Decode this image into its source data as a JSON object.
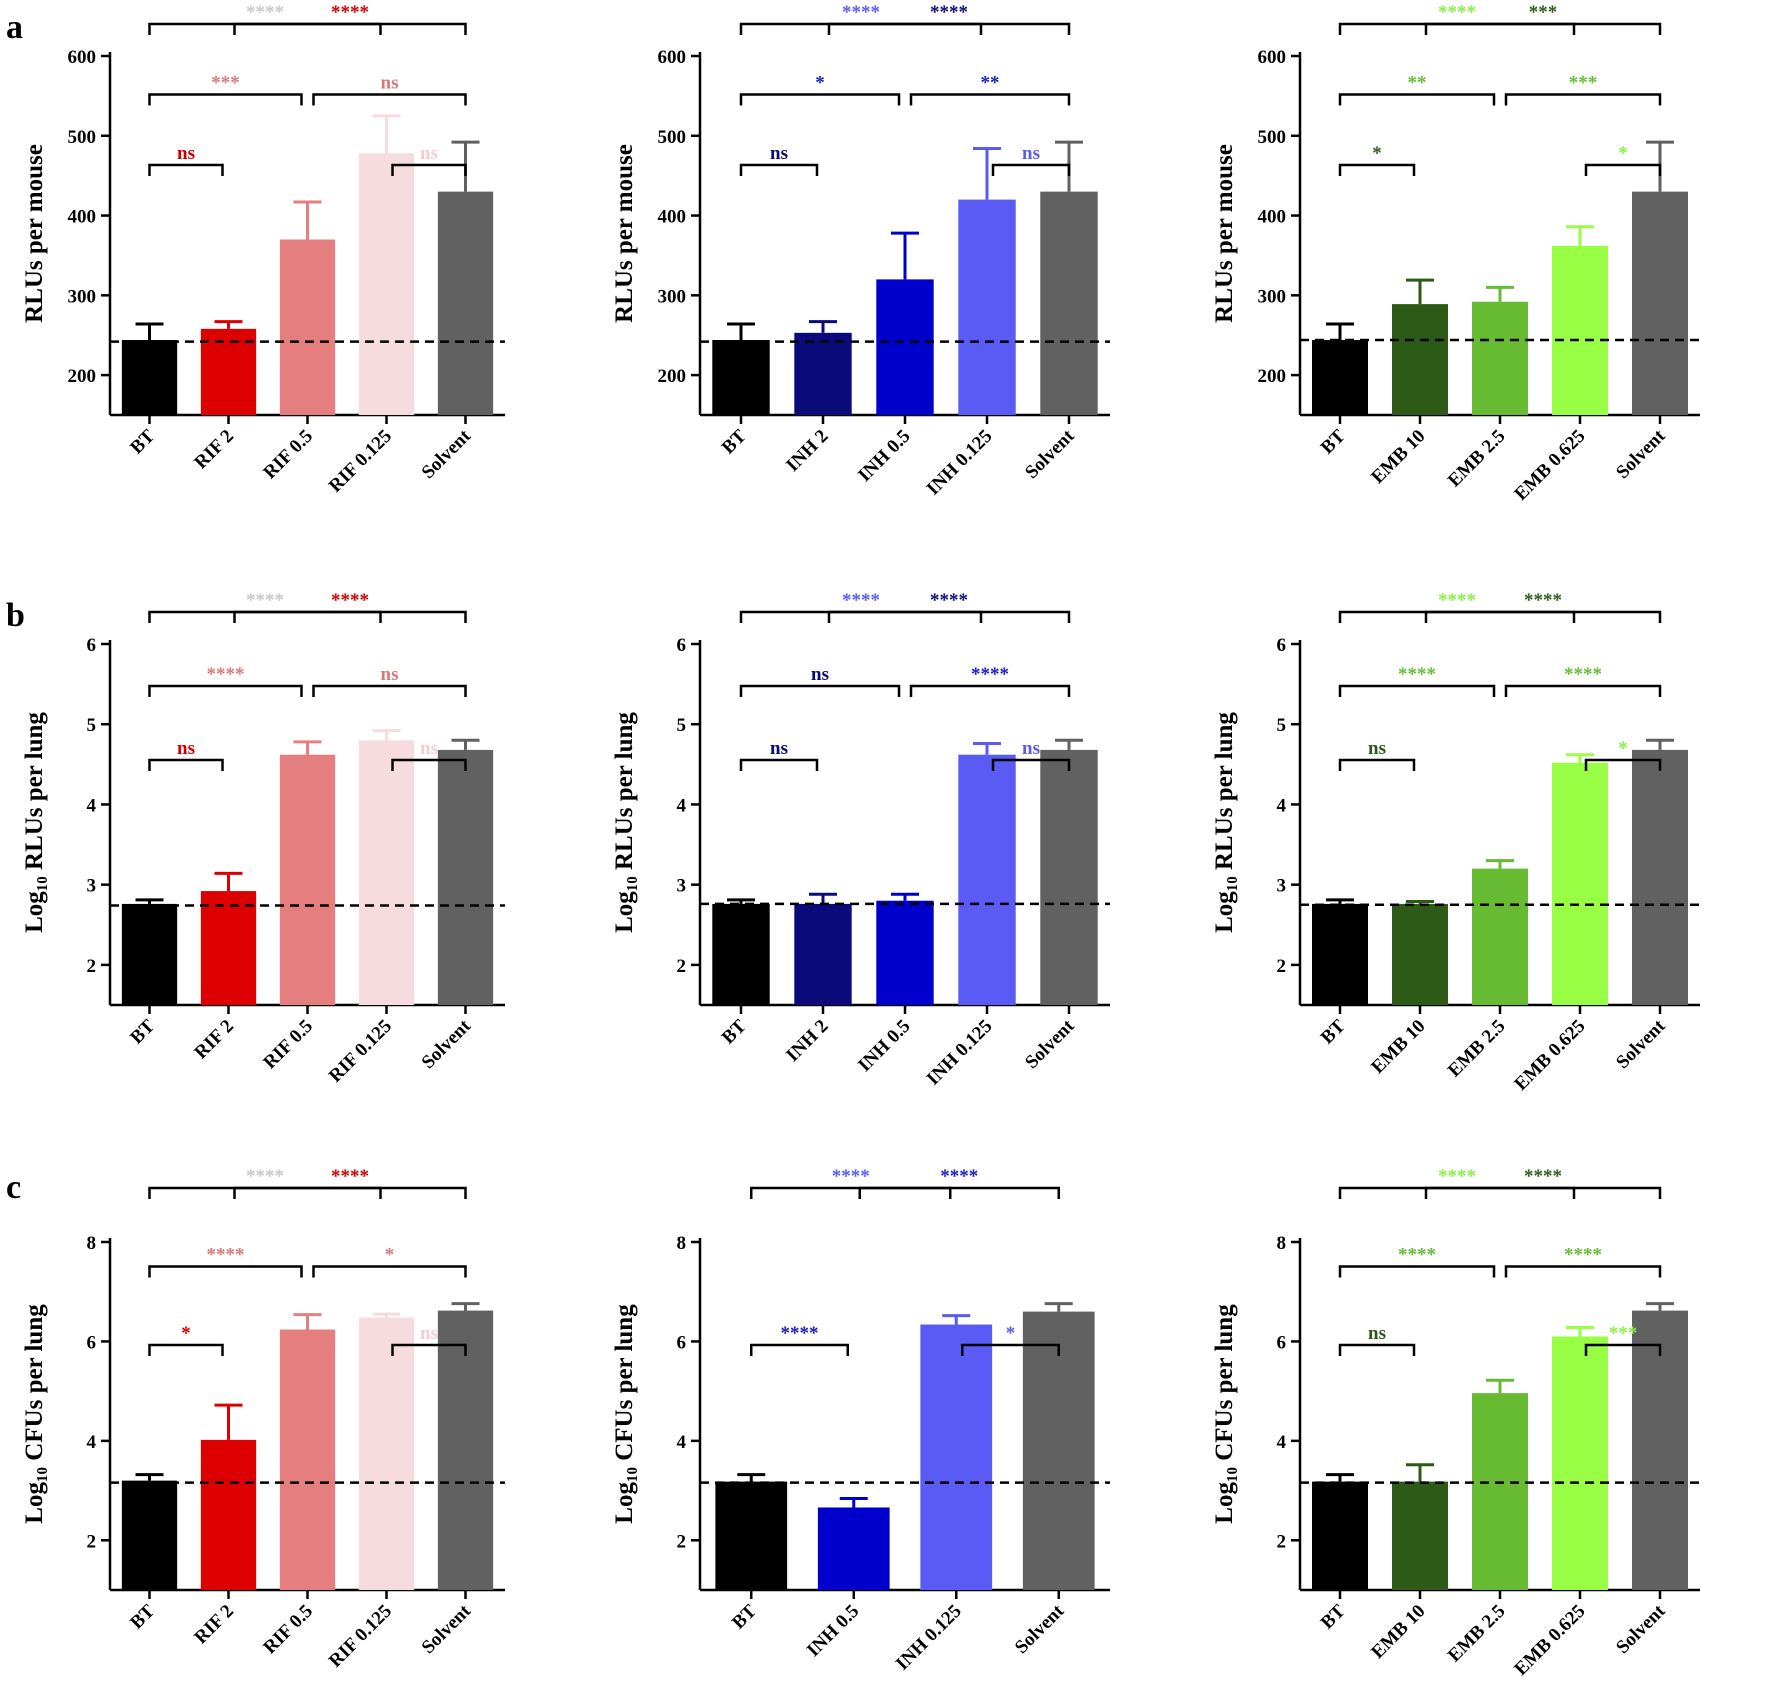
{
  "figure": {
    "panel_labels": [
      "a",
      "b",
      "c"
    ],
    "colors": {
      "BT": "#000000",
      "RIF 2": "#dd0000",
      "RIF 0.5": "#e57f7f",
      "RIF 0.125": "#f6dcdf",
      "Solvent": "#616161",
      "INH 2": "#0a0a7a",
      "INH 0.5": "#0000cc",
      "INH 0.125": "#5a5af5",
      "EMB 10": "#2e5a17",
      "EMB 2.5": "#66bb33",
      "EMB 0.625": "#99ff44"
    },
    "sig_colors": {
      "RIF 2": "#cc0000",
      "RIF 0.5": "#d87878",
      "RIF 0.125": "#f4cdd2",
      "RIF 0.125 vs BT": "#c8c8c8",
      "INH 2": "#0a0a7a",
      "INH 0.5": "#1a1ac0",
      "INH 0.125": "#5a5af5",
      "EMB 10": "#2e5a17",
      "EMB 2.5": "#66bb33",
      "EMB 0.625": "#88ee44"
    }
  },
  "chart_data": [
    {
      "type": "bar",
      "panel": "a",
      "col": 0,
      "ylabel": "RLUs per mouse",
      "ylim": [
        150,
        600
      ],
      "yticks": [
        200,
        300,
        400,
        500,
        600
      ],
      "categories": [
        "BT",
        "RIF 2",
        "RIF 0.5",
        "RIF 0.125",
        "Solvent"
      ],
      "values": [
        244,
        258,
        370,
        478,
        430
      ],
      "errors": [
        20,
        9,
        47,
        47,
        62
      ],
      "baseline": 242,
      "comparisons": [
        {
          "from": "BT",
          "to": "RIF 2",
          "label": "ns",
          "color": "RIF 2"
        },
        {
          "from": "BT",
          "to": "RIF 0.5",
          "label": "***",
          "color": "RIF 0.5"
        },
        {
          "from": "BT",
          "to": "RIF 0.125",
          "label": "****",
          "color": "RIF 0.125 vs BT"
        },
        {
          "from": "RIF 0.125",
          "to": "Solvent",
          "label": "ns",
          "color": "RIF 0.125"
        },
        {
          "from": "RIF 0.5",
          "to": "Solvent",
          "label": "ns",
          "color": "RIF 0.5"
        },
        {
          "from": "RIF 2",
          "to": "Solvent",
          "label": "****",
          "color": "RIF 2"
        }
      ]
    },
    {
      "type": "bar",
      "panel": "a",
      "col": 1,
      "ylabel": "RLUs per mouse",
      "ylim": [
        150,
        600
      ],
      "yticks": [
        200,
        300,
        400,
        500,
        600
      ],
      "categories": [
        "BT",
        "INH 2",
        "INH 0.5",
        "INH 0.125",
        "Solvent"
      ],
      "values": [
        244,
        253,
        320,
        420,
        430
      ],
      "errors": [
        20,
        14,
        58,
        64,
        62
      ],
      "baseline": 242,
      "comparisons": [
        {
          "from": "BT",
          "to": "INH 2",
          "label": "ns",
          "color": "INH 2"
        },
        {
          "from": "BT",
          "to": "INH 0.5",
          "label": "*",
          "color": "INH 0.5"
        },
        {
          "from": "BT",
          "to": "INH 0.125",
          "label": "****",
          "color": "INH 0.125"
        },
        {
          "from": "INH 0.125",
          "to": "Solvent",
          "label": "ns",
          "color": "INH 0.125"
        },
        {
          "from": "INH 0.5",
          "to": "Solvent",
          "label": "**",
          "color": "INH 0.5"
        },
        {
          "from": "INH 2",
          "to": "Solvent",
          "label": "****",
          "color": "INH 2"
        }
      ]
    },
    {
      "type": "bar",
      "panel": "a",
      "col": 2,
      "ylabel": "RLUs per mouse",
      "ylim": [
        150,
        600
      ],
      "yticks": [
        200,
        300,
        400,
        500,
        600
      ],
      "categories": [
        "BT",
        "EMB 10",
        "EMB 2.5",
        "EMB 0.625",
        "Solvent"
      ],
      "values": [
        244,
        289,
        292,
        362,
        430
      ],
      "errors": [
        20,
        30,
        18,
        24,
        62
      ],
      "baseline": 244,
      "comparisons": [
        {
          "from": "BT",
          "to": "EMB 10",
          "label": "*",
          "color": "EMB 10"
        },
        {
          "from": "BT",
          "to": "EMB 2.5",
          "label": "**",
          "color": "EMB 2.5"
        },
        {
          "from": "BT",
          "to": "EMB 0.625",
          "label": "****",
          "color": "EMB 0.625"
        },
        {
          "from": "EMB 0.625",
          "to": "Solvent",
          "label": "*",
          "color": "EMB 0.625"
        },
        {
          "from": "EMB 2.5",
          "to": "Solvent",
          "label": "***",
          "color": "EMB 2.5"
        },
        {
          "from": "EMB 10",
          "to": "Solvent",
          "label": "***",
          "color": "EMB 10"
        }
      ]
    },
    {
      "type": "bar",
      "panel": "b",
      "col": 0,
      "ylabel": "Log₁₀ RLUs per lung",
      "ylim": [
        1.5,
        6
      ],
      "yticks": [
        2,
        3,
        4,
        5,
        6
      ],
      "categories": [
        "BT",
        "RIF 2",
        "RIF 0.5",
        "RIF 0.125",
        "Solvent"
      ],
      "values": [
        2.76,
        2.92,
        4.62,
        4.8,
        4.68
      ],
      "errors": [
        0.05,
        0.22,
        0.16,
        0.12,
        0.12
      ],
      "baseline": 2.74,
      "comparisons": [
        {
          "from": "BT",
          "to": "RIF 2",
          "label": "ns",
          "color": "RIF 2"
        },
        {
          "from": "BT",
          "to": "RIF 0.5",
          "label": "****",
          "color": "RIF 0.5"
        },
        {
          "from": "BT",
          "to": "RIF 0.125",
          "label": "****",
          "color": "RIF 0.125 vs BT"
        },
        {
          "from": "RIF 0.125",
          "to": "Solvent",
          "label": "ns",
          "color": "RIF 0.125"
        },
        {
          "from": "RIF 0.5",
          "to": "Solvent",
          "label": "ns",
          "color": "RIF 0.5"
        },
        {
          "from": "RIF 2",
          "to": "Solvent",
          "label": "****",
          "color": "RIF 2"
        }
      ]
    },
    {
      "type": "bar",
      "panel": "b",
      "col": 1,
      "ylabel": "Log₁₀ RLUs per lung",
      "ylim": [
        1.5,
        6
      ],
      "yticks": [
        2,
        3,
        4,
        5,
        6
      ],
      "categories": [
        "BT",
        "INH 2",
        "INH 0.5",
        "INH 0.125",
        "Solvent"
      ],
      "values": [
        2.76,
        2.76,
        2.8,
        4.62,
        4.68
      ],
      "errors": [
        0.05,
        0.12,
        0.08,
        0.14,
        0.12
      ],
      "baseline": 2.76,
      "comparisons": [
        {
          "from": "BT",
          "to": "INH 2",
          "label": "ns",
          "color": "INH 2"
        },
        {
          "from": "BT",
          "to": "INH 0.5",
          "label": "ns",
          "color": "INH 2"
        },
        {
          "from": "BT",
          "to": "INH 0.125",
          "label": "****",
          "color": "INH 0.125"
        },
        {
          "from": "INH 0.125",
          "to": "Solvent",
          "label": "ns",
          "color": "INH 0.125"
        },
        {
          "from": "INH 0.5",
          "to": "Solvent",
          "label": "****",
          "color": "INH 0.5"
        },
        {
          "from": "INH 2",
          "to": "Solvent",
          "label": "****",
          "color": "INH 2"
        }
      ]
    },
    {
      "type": "bar",
      "panel": "b",
      "col": 2,
      "ylabel": "Log₁₀ RLUs per lung",
      "ylim": [
        1.5,
        6
      ],
      "yticks": [
        2,
        3,
        4,
        5,
        6
      ],
      "categories": [
        "BT",
        "EMB 10",
        "EMB 2.5",
        "EMB 0.625",
        "Solvent"
      ],
      "values": [
        2.76,
        2.76,
        3.2,
        4.52,
        4.68
      ],
      "errors": [
        0.05,
        0.03,
        0.1,
        0.1,
        0.12
      ],
      "baseline": 2.75,
      "comparisons": [
        {
          "from": "BT",
          "to": "EMB 10",
          "label": "ns",
          "color": "EMB 10"
        },
        {
          "from": "BT",
          "to": "EMB 2.5",
          "label": "****",
          "color": "EMB 2.5"
        },
        {
          "from": "BT",
          "to": "EMB 0.625",
          "label": "****",
          "color": "EMB 0.625"
        },
        {
          "from": "EMB 0.625",
          "to": "Solvent",
          "label": "*",
          "color": "EMB 0.625"
        },
        {
          "from": "EMB 2.5",
          "to": "Solvent",
          "label": "****",
          "color": "EMB 2.5"
        },
        {
          "from": "EMB 10",
          "to": "Solvent",
          "label": "****",
          "color": "EMB 10"
        }
      ]
    },
    {
      "type": "bar",
      "panel": "c",
      "col": 0,
      "ylabel": "Log₁₀ CFUs per lung",
      "ylim": [
        1,
        8
      ],
      "yticks": [
        2,
        4,
        6,
        8
      ],
      "categories": [
        "BT",
        "RIF 2",
        "RIF 0.5",
        "RIF 0.125",
        "Solvent"
      ],
      "values": [
        3.2,
        4.02,
        6.24,
        6.48,
        6.62
      ],
      "errors": [
        0.12,
        0.7,
        0.3,
        0.07,
        0.14
      ],
      "baseline": 3.16,
      "comparisons": [
        {
          "from": "BT",
          "to": "RIF 2",
          "label": "*",
          "color": "RIF 2"
        },
        {
          "from": "BT",
          "to": "RIF 0.5",
          "label": "****",
          "color": "RIF 0.5"
        },
        {
          "from": "BT",
          "to": "RIF 0.125",
          "label": "****",
          "color": "RIF 0.125 vs BT"
        },
        {
          "from": "RIF 0.125",
          "to": "Solvent",
          "label": "ns",
          "color": "RIF 0.125"
        },
        {
          "from": "RIF 0.5",
          "to": "Solvent",
          "label": "*",
          "color": "RIF 0.5"
        },
        {
          "from": "RIF 2",
          "to": "Solvent",
          "label": "****",
          "color": "RIF 2"
        }
      ]
    },
    {
      "type": "bar",
      "panel": "c",
      "col": 1,
      "ylabel": "Log₁₀ CFUs per lung",
      "ylim": [
        1,
        8
      ],
      "yticks": [
        2,
        4,
        6,
        8
      ],
      "categories": [
        "BT",
        "INH 0.5",
        "INH 0.125",
        "Solvent"
      ],
      "values": [
        3.18,
        2.66,
        6.34,
        6.6
      ],
      "errors": [
        0.14,
        0.18,
        0.18,
        0.16
      ],
      "baseline": 3.16,
      "comparisons": [
        {
          "from": "BT",
          "to": "INH 0.5",
          "label": "****",
          "color": "INH 0.5"
        },
        {
          "from": "BT",
          "to": "INH 0.125",
          "label": "****",
          "color": "INH 0.125"
        },
        {
          "from": "INH 0.125",
          "to": "Solvent",
          "label": "*",
          "color": "INH 0.125"
        },
        {
          "from": "INH 0.5",
          "to": "Solvent",
          "label": "****",
          "color": "INH 0.5"
        }
      ]
    },
    {
      "type": "bar",
      "panel": "c",
      "col": 2,
      "ylabel": "Log₁₀ CFUs per lung",
      "ylim": [
        1,
        8
      ],
      "yticks": [
        2,
        4,
        6,
        8
      ],
      "categories": [
        "BT",
        "EMB 10",
        "EMB 2.5",
        "EMB 0.625",
        "Solvent"
      ],
      "values": [
        3.18,
        3.18,
        4.96,
        6.1,
        6.62
      ],
      "errors": [
        0.14,
        0.34,
        0.26,
        0.18,
        0.14
      ],
      "baseline": 3.16,
      "comparisons": [
        {
          "from": "BT",
          "to": "EMB 10",
          "label": "ns",
          "color": "EMB 10"
        },
        {
          "from": "BT",
          "to": "EMB 2.5",
          "label": "****",
          "color": "EMB 2.5"
        },
        {
          "from": "BT",
          "to": "EMB 0.625",
          "label": "****",
          "color": "EMB 0.625"
        },
        {
          "from": "EMB 0.625",
          "to": "Solvent",
          "label": "***",
          "color": "EMB 0.625"
        },
        {
          "from": "EMB 2.5",
          "to": "Solvent",
          "label": "****",
          "color": "EMB 2.5"
        },
        {
          "from": "EMB 10",
          "to": "Solvent",
          "label": "****",
          "color": "EMB 10"
        }
      ]
    }
  ]
}
